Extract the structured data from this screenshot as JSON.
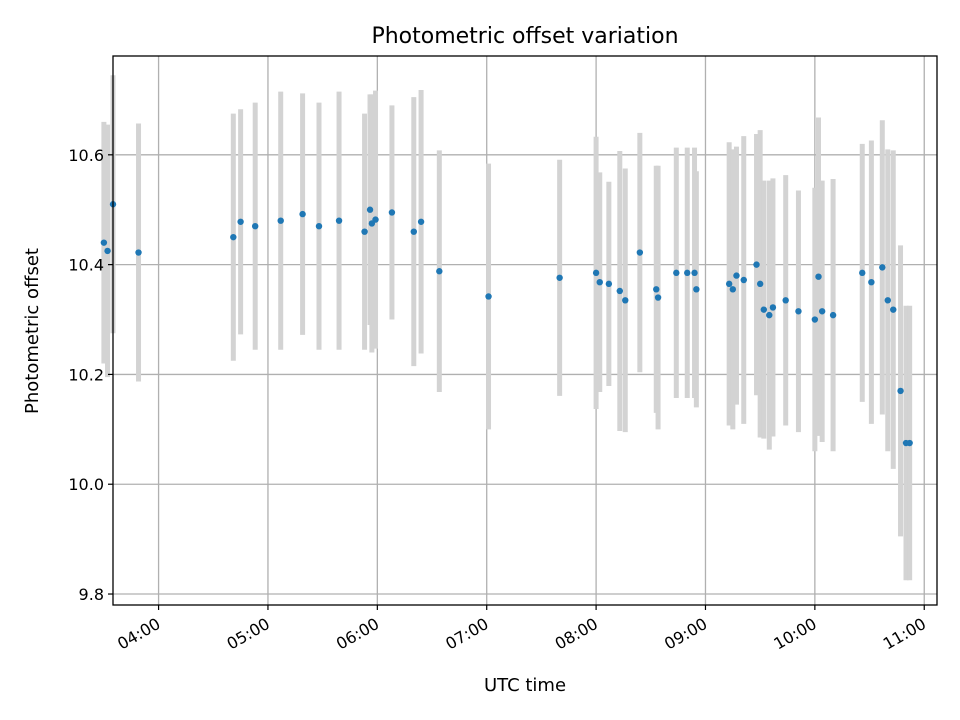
{
  "chart_data": {
    "type": "scatter",
    "title": "Photometric offset variation",
    "xlabel": "UTC time",
    "ylabel": "Photometric offset",
    "xlim": [
      "03:35",
      "11:07"
    ],
    "ylim": [
      9.78,
      10.78
    ],
    "x_ticks": [
      "04:00",
      "05:00",
      "06:00",
      "07:00",
      "08:00",
      "09:00",
      "10:00",
      "11:00"
    ],
    "y_ticks": [
      9.8,
      10.0,
      10.2,
      10.4,
      10.6
    ],
    "y_tick_labels": [
      "9.8",
      "10.0",
      "10.2",
      "10.4",
      "10.6"
    ],
    "grid": true,
    "colors": {
      "point": "#1f77b4",
      "errorbar": "#d3d3d3",
      "grid": "#b0b0b0",
      "axis": "#000000"
    },
    "series": [
      {
        "x": [
          "03:30",
          "03:32",
          "03:35",
          "03:49",
          "04:41",
          "04:45",
          "04:53",
          "05:07",
          "05:19",
          "05:28",
          "05:39",
          "05:53",
          "05:56",
          "05:57",
          "05:59",
          "06:08",
          "06:20",
          "06:24",
          "06:34",
          "07:01",
          "07:40",
          "08:00",
          "08:02",
          "08:07",
          "08:13",
          "08:16",
          "08:24",
          "08:33",
          "08:34",
          "08:44",
          "08:50",
          "08:54",
          "08:55",
          "09:13",
          "09:15",
          "09:17",
          "09:21",
          "09:28",
          "09:30",
          "09:32",
          "09:35",
          "09:37",
          "09:44",
          "09:51",
          "10:00",
          "10:02",
          "10:04",
          "10:10",
          "10:26",
          "10:31",
          "10:37",
          "10:40",
          "10:43",
          "10:47",
          "10:50",
          "10:52"
        ],
        "y": [
          10.44,
          10.425,
          10.51,
          10.422,
          10.45,
          10.478,
          10.47,
          10.48,
          10.492,
          10.47,
          10.48,
          10.46,
          10.5,
          10.475,
          10.482,
          10.495,
          10.46,
          10.478,
          10.388,
          10.342,
          10.376,
          10.385,
          10.368,
          10.365,
          10.352,
          10.335,
          10.422,
          10.355,
          10.34,
          10.385,
          10.385,
          10.385,
          10.355,
          10.365,
          10.355,
          10.38,
          10.372,
          10.4,
          10.365,
          10.318,
          10.308,
          10.322,
          10.335,
          10.315,
          10.3,
          10.378,
          10.315,
          10.308,
          10.385,
          10.368,
          10.395,
          10.335,
          10.318,
          10.17,
          10.075,
          10.075
        ],
        "yerr": [
          0.22,
          0.23,
          0.235,
          0.235,
          0.225,
          0.205,
          0.225,
          0.235,
          0.22,
          0.225,
          0.235,
          0.215,
          0.21,
          0.235,
          0.235,
          0.195,
          0.245,
          0.24,
          0.22,
          0.242,
          0.215,
          0.248,
          0.2,
          0.186,
          0.255,
          0.24,
          0.218,
          0.225,
          0.24,
          0.228,
          0.228,
          0.228,
          0.215,
          0.258,
          0.255,
          0.235,
          0.262,
          0.238,
          0.28,
          0.235,
          0.245,
          0.235,
          0.228,
          0.22,
          0.24,
          0.29,
          0.238,
          0.248,
          0.235,
          0.258,
          0.268,
          0.275,
          0.29,
          0.265,
          0.25,
          0.25
        ]
      }
    ]
  }
}
